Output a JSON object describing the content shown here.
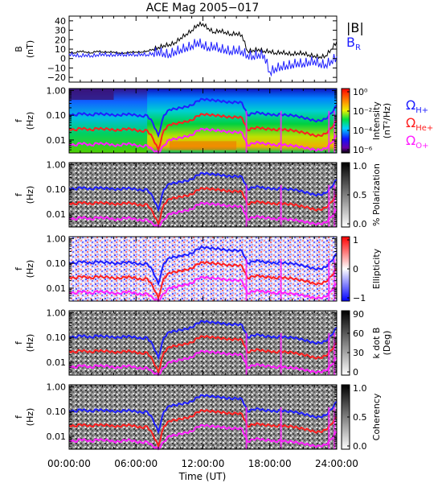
{
  "figure": {
    "title": "ACE Mag 2005−017",
    "xlabel": "Time (UT)",
    "xticks": [
      "00:00:00",
      "06:00:00",
      "12:00:00",
      "18:00:00",
      "24:00:00"
    ],
    "xtick_hours": [
      0,
      6,
      12,
      18,
      24
    ],
    "xrange_hours": [
      0,
      24
    ]
  },
  "chart_data": [
    {
      "type": "line",
      "panel": "B",
      "ylabel": "B",
      "yunit": "(nT)",
      "ylim": [
        -25,
        45
      ],
      "yticks": [
        -20,
        -10,
        0,
        10,
        20,
        30,
        40
      ],
      "legend": [
        {
          "label": "|B|",
          "color": "#000000"
        },
        {
          "label": "B",
          "sub": "R",
          "color": "#1f1fff"
        }
      ],
      "series": [
        {
          "name": "|B|",
          "color": "#000000",
          "x": [
            0,
            0.5,
            1,
            1.5,
            2,
            2.5,
            3,
            3.5,
            4,
            4.5,
            5,
            5.5,
            6,
            6.5,
            7,
            7.5,
            8,
            8.5,
            9,
            9.5,
            10,
            10.5,
            11,
            11.5,
            12,
            12.5,
            13,
            13.5,
            14,
            14.5,
            15,
            15.5,
            16,
            16.5,
            17,
            17.5,
            18,
            18.5,
            19,
            19.5,
            20,
            20.5,
            21,
            21.5,
            22,
            22.5,
            23,
            23.5,
            24
          ],
          "y": [
            7,
            6,
            8,
            7,
            6,
            8,
            7,
            7,
            7,
            6,
            6,
            7,
            7,
            7,
            8,
            10,
            12,
            14,
            15,
            17,
            22,
            26,
            30,
            36,
            37,
            32,
            28,
            30,
            28,
            26,
            27,
            25,
            8,
            9,
            10,
            8,
            8,
            6,
            7,
            6,
            5,
            6,
            6,
            4,
            3,
            2,
            3,
            10,
            18
          ]
        },
        {
          "name": "B",
          "color": "#1f1fff",
          "x": [
            0,
            0.5,
            1,
            1.5,
            2,
            2.5,
            3,
            3.5,
            4,
            4.5,
            5,
            5.5,
            6,
            6.5,
            7,
            7.5,
            8,
            8.5,
            9,
            9.5,
            10,
            10.5,
            11,
            11.5,
            12,
            12.5,
            13,
            13.5,
            14,
            14.5,
            15,
            15.5,
            16,
            16.5,
            17,
            17.5,
            18,
            18.5,
            19,
            19.5,
            20,
            20.5,
            21,
            21.5,
            22,
            22.5,
            23,
            23.5,
            24
          ],
          "y": [
            5,
            4,
            3,
            4,
            3,
            4,
            5,
            4,
            4,
            5,
            4,
            5,
            4,
            5,
            4,
            6,
            8,
            6,
            5,
            8,
            10,
            12,
            14,
            18,
            15,
            12,
            14,
            11,
            10,
            8,
            10,
            8,
            4,
            3,
            5,
            4,
            -14,
            -10,
            -8,
            -7,
            -6,
            -4,
            -5,
            -3,
            -2,
            -5,
            -6,
            -2,
            2
          ]
        }
      ]
    },
    {
      "type": "heatmap",
      "panel": "intensity",
      "ylabel": "f",
      "yunit": "(Hz)",
      "yscale": "log",
      "ylim": [
        0.003,
        1.2
      ],
      "yticks": [
        "1.00",
        "0.10",
        "0.01"
      ],
      "ytick_values": [
        1.0,
        0.1,
        0.01
      ],
      "colorbar": {
        "scale": "rainbow",
        "label": "Intensity",
        "unit": "(nT²/Hz)",
        "ticks": [
          "10⁰",
          "10⁻²",
          "10⁻⁴",
          "10⁻⁶"
        ]
      },
      "legend": [
        {
          "label": "Ω",
          "sub": "H+",
          "color": "#1f1fff"
        },
        {
          "label": "Ω",
          "sub": "He+",
          "color": "#ff1f1f"
        },
        {
          "label": "Ω",
          "sub": "O+",
          "color": "#ff1fff"
        }
      ]
    },
    {
      "type": "heatmap",
      "panel": "polarization",
      "ylabel": "f",
      "yunit": "(Hz)",
      "yscale": "log",
      "yticks": [
        "1.00",
        "0.10",
        "0.01"
      ],
      "colorbar": {
        "scale": "gray-reversed",
        "label": "% Polarization",
        "ticks": [
          "1.0",
          "0.5",
          "0.0"
        ]
      }
    },
    {
      "type": "heatmap",
      "panel": "ellipticity",
      "ylabel": "f",
      "yunit": "(Hz)",
      "yscale": "log",
      "yticks": [
        "1.00",
        "0.10",
        "0.01"
      ],
      "colorbar": {
        "scale": "blue-white-red",
        "label": "Ellipticity",
        "ticks": [
          "1",
          "0",
          "−1"
        ]
      }
    },
    {
      "type": "heatmap",
      "panel": "kdotb",
      "ylabel": "f",
      "yunit": "(Hz)",
      "yscale": "log",
      "yticks": [
        "1.00",
        "0.10",
        "0.01"
      ],
      "colorbar": {
        "scale": "gray-reversed",
        "label": "k dot B",
        "unit": "(Deg)",
        "ticks": [
          "90",
          "60",
          "30",
          "0"
        ]
      }
    },
    {
      "type": "heatmap",
      "panel": "coherency",
      "ylabel": "f",
      "yunit": "(Hz)",
      "yscale": "log",
      "yticks": [
        "1.00",
        "0.10",
        "0.01"
      ],
      "colorbar": {
        "scale": "gray-reversed",
        "label": "Coherency",
        "ticks": [
          "1.0",
          "0.5",
          "0.0"
        ]
      }
    }
  ],
  "gyrofrequency_curves": {
    "x": [
      0,
      0.5,
      1,
      1.5,
      2,
      2.5,
      3,
      3.5,
      4,
      4.5,
      5,
      5.5,
      6,
      6.5,
      7,
      7.5,
      8,
      8.5,
      9,
      9.5,
      10,
      10.5,
      11,
      11.5,
      12,
      12.5,
      13,
      13.5,
      14,
      14.5,
      15,
      15.5,
      16,
      16.5,
      17,
      17.5,
      18,
      18.5,
      19,
      19.5,
      20,
      20.5,
      21,
      21.5,
      22,
      22.5,
      23,
      23.5,
      24
    ],
    "H+": [
      0.11,
      0.1,
      0.12,
      0.11,
      0.1,
      0.12,
      0.11,
      0.11,
      0.1,
      0.1,
      0.11,
      0.11,
      0.1,
      0.09,
      0.1,
      0.05,
      0.015,
      0.1,
      0.17,
      0.18,
      0.2,
      0.22,
      0.25,
      0.38,
      0.45,
      0.42,
      0.4,
      0.38,
      0.35,
      0.33,
      0.34,
      0.32,
      0.1,
      0.12,
      0.13,
      0.11,
      0.11,
      0.1,
      0.11,
      0.1,
      0.1,
      0.09,
      0.08,
      0.07,
      0.06,
      0.06,
      0.07,
      0.12,
      0.25
    ],
    "He+": [
      0.028,
      0.025,
      0.03,
      0.028,
      0.025,
      0.03,
      0.028,
      0.028,
      0.025,
      0.025,
      0.028,
      0.028,
      0.025,
      0.022,
      0.025,
      0.012,
      0.004,
      0.025,
      0.042,
      0.045,
      0.05,
      0.055,
      0.062,
      0.095,
      0.11,
      0.105,
      0.1,
      0.095,
      0.088,
      0.082,
      0.085,
      0.08,
      0.025,
      0.03,
      0.032,
      0.028,
      0.028,
      0.025,
      0.028,
      0.025,
      0.025,
      0.022,
      0.02,
      0.018,
      0.015,
      0.015,
      0.018,
      0.03,
      0.062
    ],
    "O+": [
      0.007,
      0.006,
      0.0075,
      0.007,
      0.006,
      0.0075,
      0.007,
      0.007,
      0.006,
      0.006,
      0.007,
      0.007,
      0.006,
      0.0055,
      0.006,
      0.004,
      0.003,
      0.006,
      0.0105,
      0.011,
      0.0125,
      0.014,
      0.0155,
      0.024,
      0.028,
      0.026,
      0.025,
      0.024,
      0.022,
      0.0205,
      0.021,
      0.02,
      0.006,
      0.0075,
      0.008,
      0.007,
      0.007,
      0.006,
      0.007,
      0.006,
      0.006,
      0.0055,
      0.005,
      0.0045,
      0.004,
      0.004,
      0.0045,
      0.0075,
      0.0155
    ]
  }
}
